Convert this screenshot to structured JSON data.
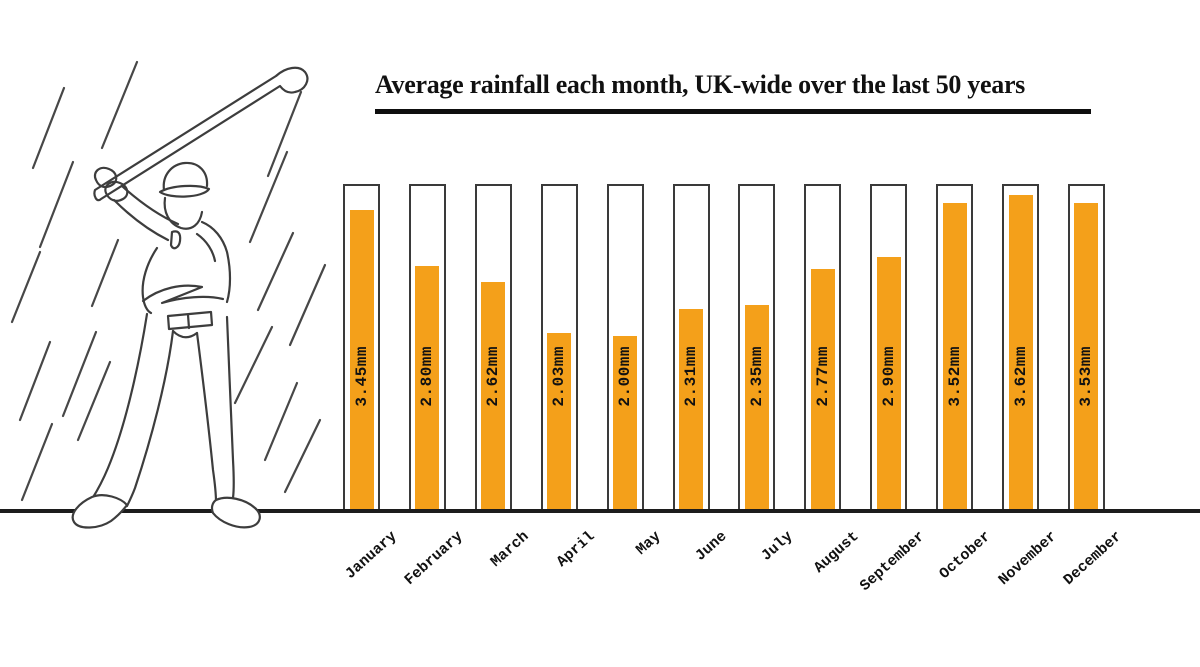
{
  "header": {
    "title": "Average rainfall each month, UK-wide over the last 50 years"
  },
  "chart_data": {
    "type": "bar",
    "title": "Average rainfall each month, UK-wide over the last 50 years",
    "categories": [
      "January",
      "February",
      "March",
      "April",
      "May",
      "June",
      "July",
      "August",
      "September",
      "October",
      "November",
      "December"
    ],
    "values": [
      3.45,
      2.8,
      2.62,
      2.03,
      2.0,
      2.31,
      2.35,
      2.77,
      2.9,
      3.52,
      3.62,
      3.53
    ],
    "labels": [
      "3.45mm",
      "2.80mm",
      "2.62mm",
      "2.03mm",
      "2.00mm",
      "2.31mm",
      "2.35mm",
      "2.77mm",
      "2.90mm",
      "3.52mm",
      "3.62mm",
      "3.53mm"
    ],
    "unit": "mm",
    "xlabel": "",
    "ylabel": "",
    "ylim": [
      0,
      3.72
    ],
    "grid": false,
    "legend": false,
    "bar_orientation": "vertical",
    "value_label_position": "inside-rotated",
    "category_label_rotation_deg": -42
  },
  "colors": {
    "bar": "#F4A01A",
    "outline": "#3a3a3a",
    "ink": "#111111",
    "axis": "#1c1c1c",
    "background": "#ffffff"
  },
  "illustration": {
    "name": "golfer-in-rain-line-art"
  }
}
